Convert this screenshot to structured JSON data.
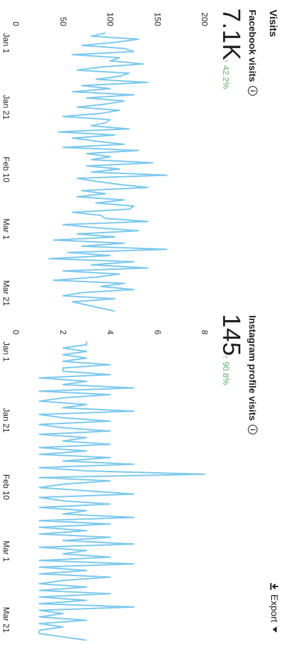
{
  "card": {
    "title": "Visits",
    "export_label": "Export",
    "export_icon": "download-icon",
    "info_glyph": "i"
  },
  "metrics": [
    {
      "label": "Facebook visits",
      "value": "7.1K",
      "delta": "↑ 42.2%"
    },
    {
      "label": "Instagram profile visits",
      "value": "145",
      "delta": "↑ 90.8%"
    }
  ],
  "colors": {
    "line": "#7cc8ec",
    "positive": "#5fa86d",
    "frame": "#4f9fb0"
  },
  "chart_data": [
    {
      "type": "line",
      "x_tick_labels": [
        "Jan 1",
        "Jan 21",
        "Feb 10",
        "Mar 1",
        "Mar 21"
      ],
      "x_tick_index": [
        0,
        20,
        40,
        60,
        80
      ],
      "ylim": [
        0,
        200
      ],
      "y_ticks": [
        0,
        50,
        100,
        150,
        200
      ],
      "grid": false,
      "series": [
        {
          "values": [
            95,
            80,
            130,
            105,
            70,
            115,
            125,
            60,
            110,
            100,
            135,
            90,
            65,
            120,
            110,
            85,
            140,
            70,
            100,
            60,
            125,
            75,
            115,
            95,
            65,
            110,
            90,
            50,
            100,
            95,
            80,
            120,
            45,
            105,
            60,
            85,
            115,
            50,
            130,
            75,
            100,
            80,
            145,
            75,
            110,
            80,
            160,
            65,
            85,
            110,
            140,
            70,
            95,
            65,
            115,
            85,
            125,
            120,
            60,
            90,
            95,
            140,
            50,
            85,
            130,
            65,
            105,
            40,
            115,
            70,
            160,
            55,
            100,
            35,
            125,
            80,
            140,
            50,
            110,
            85,
            40,
            115,
            90,
            125,
            70,
            50,
            105,
            60,
            75,
            90,
            105
          ]
        }
      ]
    },
    {
      "type": "line",
      "x_tick_labels": [
        "Jan 1",
        "Jan 21",
        "Feb 10",
        "Mar 1",
        "Mar 21"
      ],
      "x_tick_index": [
        0,
        20,
        40,
        60,
        80
      ],
      "ylim": [
        0,
        8
      ],
      "y_ticks": [
        0,
        2,
        4,
        6,
        8
      ],
      "grid": false,
      "series": [
        {
          "values": [
            3,
            3,
            2,
            3,
            2,
            3,
            2,
            4,
            2,
            2,
            4,
            1,
            3,
            2,
            5,
            1,
            4,
            2,
            1,
            3,
            2,
            5,
            1,
            2,
            4,
            1,
            2,
            4,
            1,
            3,
            2,
            4,
            1,
            3,
            1,
            4,
            2,
            5,
            1,
            3,
            8,
            1,
            4,
            2,
            1,
            3,
            5,
            1,
            2,
            4,
            1,
            3,
            2,
            5,
            1,
            4,
            1,
            3,
            1,
            4,
            2,
            5,
            1,
            3,
            2,
            4,
            1,
            5,
            1,
            3,
            1,
            4,
            2,
            1,
            3,
            1,
            4,
            1,
            3,
            1,
            5,
            1,
            2,
            1,
            3,
            1,
            2,
            1,
            1,
            2,
            3
          ]
        }
      ]
    }
  ]
}
